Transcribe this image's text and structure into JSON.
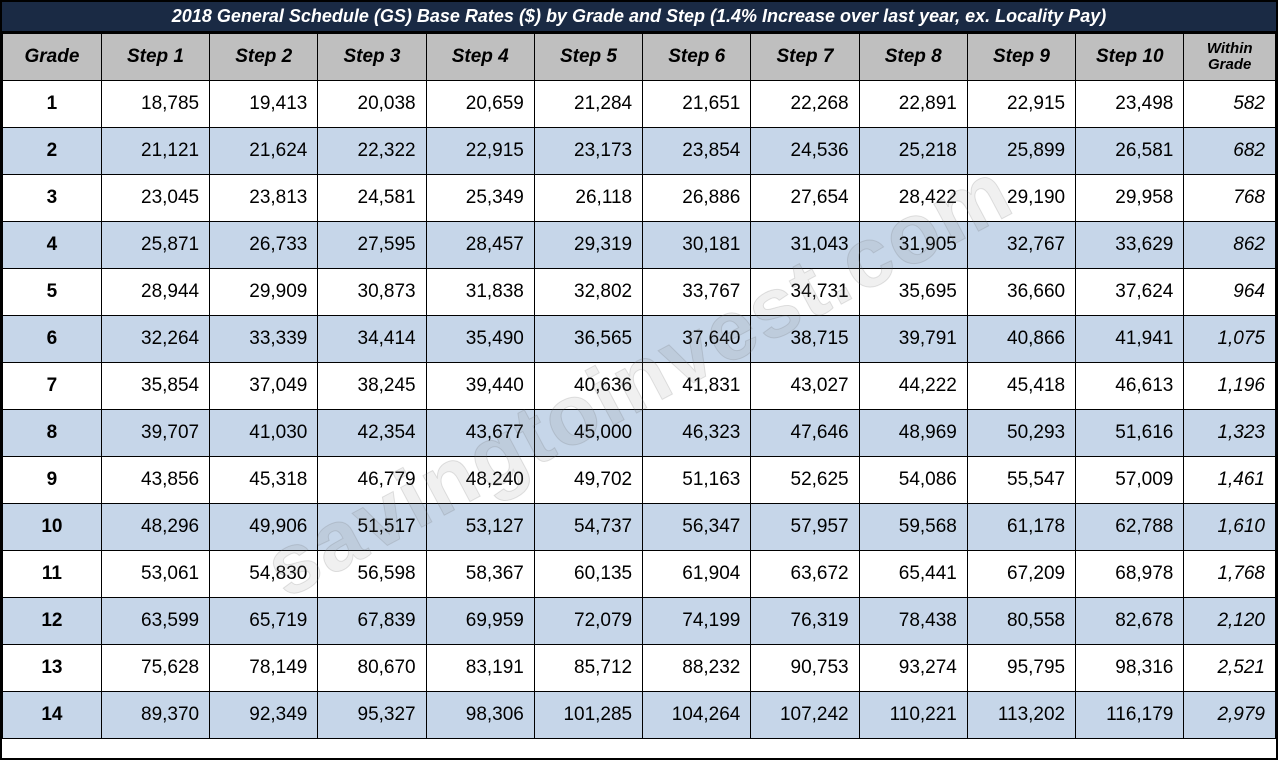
{
  "title": "2018 General Schedule (GS) Base Rates ($) by Grade and Step (1.4% Increase over last year, ex. Locality Pay)",
  "watermark": "savingtoinvest.com",
  "table": {
    "columns": [
      "Grade",
      "Step 1",
      "Step 2",
      "Step 3",
      "Step 4",
      "Step 5",
      "Step 6",
      "Step 7",
      "Step 8",
      "Step 9",
      "Step 10",
      "Within Grade"
    ],
    "rows": [
      {
        "grade": "1",
        "steps": [
          "18,785",
          "19,413",
          "20,038",
          "20,659",
          "21,284",
          "21,651",
          "22,268",
          "22,891",
          "22,915",
          "23,498"
        ],
        "within": "582",
        "alt": false
      },
      {
        "grade": "2",
        "steps": [
          "21,121",
          "21,624",
          "22,322",
          "22,915",
          "23,173",
          "23,854",
          "24,536",
          "25,218",
          "25,899",
          "26,581"
        ],
        "within": "682",
        "alt": true
      },
      {
        "grade": "3",
        "steps": [
          "23,045",
          "23,813",
          "24,581",
          "25,349",
          "26,118",
          "26,886",
          "27,654",
          "28,422",
          "29,190",
          "29,958"
        ],
        "within": "768",
        "alt": false
      },
      {
        "grade": "4",
        "steps": [
          "25,871",
          "26,733",
          "27,595",
          "28,457",
          "29,319",
          "30,181",
          "31,043",
          "31,905",
          "32,767",
          "33,629"
        ],
        "within": "862",
        "alt": true
      },
      {
        "grade": "5",
        "steps": [
          "28,944",
          "29,909",
          "30,873",
          "31,838",
          "32,802",
          "33,767",
          "34,731",
          "35,695",
          "36,660",
          "37,624"
        ],
        "within": "964",
        "alt": false
      },
      {
        "grade": "6",
        "steps": [
          "32,264",
          "33,339",
          "34,414",
          "35,490",
          "36,565",
          "37,640",
          "38,715",
          "39,791",
          "40,866",
          "41,941"
        ],
        "within": "1,075",
        "alt": true
      },
      {
        "grade": "7",
        "steps": [
          "35,854",
          "37,049",
          "38,245",
          "39,440",
          "40,636",
          "41,831",
          "43,027",
          "44,222",
          "45,418",
          "46,613"
        ],
        "within": "1,196",
        "alt": false
      },
      {
        "grade": "8",
        "steps": [
          "39,707",
          "41,030",
          "42,354",
          "43,677",
          "45,000",
          "46,323",
          "47,646",
          "48,969",
          "50,293",
          "51,616"
        ],
        "within": "1,323",
        "alt": true
      },
      {
        "grade": "9",
        "steps": [
          "43,856",
          "45,318",
          "46,779",
          "48,240",
          "49,702",
          "51,163",
          "52,625",
          "54,086",
          "55,547",
          "57,009"
        ],
        "within": "1,461",
        "alt": false
      },
      {
        "grade": "10",
        "steps": [
          "48,296",
          "49,906",
          "51,517",
          "53,127",
          "54,737",
          "56,347",
          "57,957",
          "59,568",
          "61,178",
          "62,788"
        ],
        "within": "1,610",
        "alt": true
      },
      {
        "grade": "11",
        "steps": [
          "53,061",
          "54,830",
          "56,598",
          "58,367",
          "60,135",
          "61,904",
          "63,672",
          "65,441",
          "67,209",
          "68,978"
        ],
        "within": "1,768",
        "alt": false
      },
      {
        "grade": "12",
        "steps": [
          "63,599",
          "65,719",
          "67,839",
          "69,959",
          "72,079",
          "74,199",
          "76,319",
          "78,438",
          "80,558",
          "82,678"
        ],
        "within": "2,120",
        "alt": true
      },
      {
        "grade": "13",
        "steps": [
          "75,628",
          "78,149",
          "80,670",
          "83,191",
          "85,712",
          "88,232",
          "90,753",
          "93,274",
          "95,795",
          "98,316"
        ],
        "within": "2,521",
        "alt": false
      },
      {
        "grade": "14",
        "steps": [
          "89,370",
          "92,349",
          "95,327",
          "98,306",
          "101,285",
          "104,264",
          "107,242",
          "110,221",
          "113,202",
          "116,179"
        ],
        "within": "2,979",
        "alt": true
      }
    ],
    "header_bg": "#bfbfbf",
    "alt_row_bg": "#c6d6e9",
    "title_bg": "#1a2a44",
    "border_color": "#000000"
  }
}
